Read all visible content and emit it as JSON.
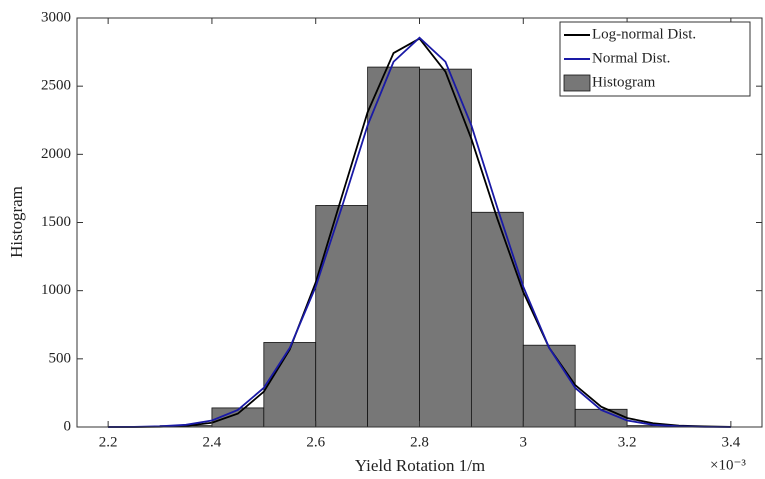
{
  "chart_data": {
    "type": "histogram",
    "xlabel": "Yield Rotation 1/m",
    "ylabel": "Histogram",
    "x_scale_label": "×10⁻³",
    "xlim": [
      2.14,
      3.46
    ],
    "xticks": [
      2.2,
      2.4,
      2.6,
      2.8,
      3,
      3.2,
      3.4
    ],
    "ylim": [
      0,
      3000
    ],
    "yticks": [
      0,
      500,
      1000,
      1500,
      2000,
      2500,
      3000
    ],
    "legend_corner": "upper right",
    "histogram": {
      "name": "Histogram",
      "color": "#777777",
      "bins": [
        2.3,
        2.4,
        2.5,
        2.6,
        2.7,
        2.8,
        2.9,
        3.0,
        3.1,
        3.2,
        3.3
      ],
      "counts": [
        10,
        140,
        620,
        1625,
        2640,
        2625,
        1575,
        600,
        130,
        10
      ]
    },
    "x": [
      2.2,
      2.25,
      2.3,
      2.35,
      2.4,
      2.45,
      2.5,
      2.55,
      2.6,
      2.65,
      2.7,
      2.75,
      2.8,
      2.85,
      2.9,
      2.95,
      3.0,
      3.05,
      3.1,
      3.15,
      3.2,
      3.25,
      3.3,
      3.35,
      3.4
    ],
    "series": [
      {
        "name": "Log-normal Dist.",
        "color": "#000000",
        "values": [
          0,
          0,
          2,
          8,
          31,
          98,
          259,
          569,
          1060,
          1687,
          2309,
          2743,
          2849,
          2606,
          2113,
          1528,
          990,
          580,
          308,
          149,
          66,
          27,
          10,
          4,
          1
        ]
      },
      {
        "name": "Normal Dist.",
        "color": "#1a1aa6",
        "values": [
          0,
          1,
          5,
          16,
          48,
          125,
          287,
          580,
          1029,
          1608,
          2212,
          2679,
          2855,
          2679,
          2212,
          1608,
          1029,
          580,
          287,
          125,
          48,
          16,
          5,
          1,
          0
        ]
      }
    ]
  }
}
